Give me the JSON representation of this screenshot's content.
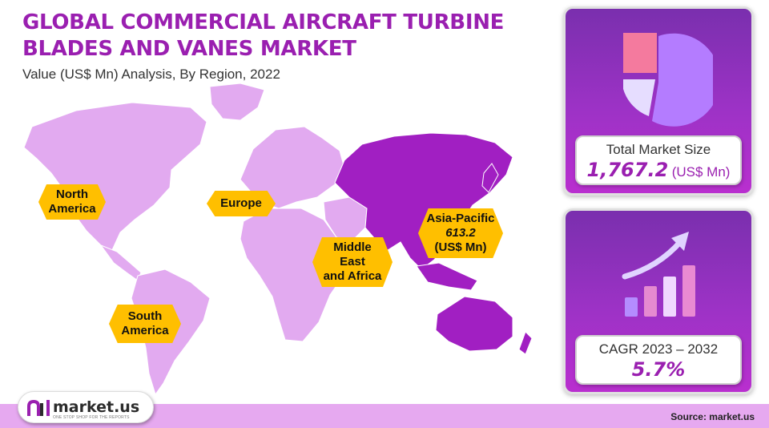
{
  "title": "GLOBAL COMMERCIAL AIRCRAFT TURBINE BLADES AND VANES MARKET",
  "subtitle": "Value (US$ Mn) Analysis, By Region, 2022",
  "chart_data": {
    "type": "map",
    "title": "GLOBAL COMMERCIAL AIRCRAFT TURBINE BLADES AND VANES MARKET",
    "subtitle": "Value (US$ Mn) Analysis, By Region, 2022",
    "regions": [
      {
        "name": "North America",
        "label_lines": [
          "North",
          "America"
        ],
        "highlighted": false
      },
      {
        "name": "Europe",
        "label_lines": [
          "Europe"
        ],
        "highlighted": false
      },
      {
        "name": "Middle East and Africa",
        "label_lines": [
          "Middle",
          "East",
          "and Africa"
        ],
        "highlighted": false
      },
      {
        "name": "South America",
        "label_lines": [
          "South",
          "America"
        ],
        "highlighted": false
      },
      {
        "name": "Asia-Pacific",
        "label_lines": [
          "Asia-Pacific"
        ],
        "value": 613.2,
        "value_text": "613.2",
        "unit": "(US$ Mn)",
        "highlighted": true
      }
    ],
    "colors": {
      "base": "#e2aaf0",
      "highlight": "#a11fc2",
      "label_bg": "#ffbf00"
    }
  },
  "total": {
    "label": "Total Market Size",
    "value": "1,767.2",
    "unit": "(US$ Mn)"
  },
  "cagr": {
    "label": "CAGR 2023 – 2032",
    "value": "5.7%"
  },
  "icons": {
    "pie": "pie-chart-icon",
    "growth": "growth-chart-icon",
    "logo": "market-us-logo-icon"
  },
  "logo": {
    "text": "market.us",
    "tagline": "ONE STOP SHOP FOR THE REPORTS"
  },
  "source": "Source: market.us"
}
